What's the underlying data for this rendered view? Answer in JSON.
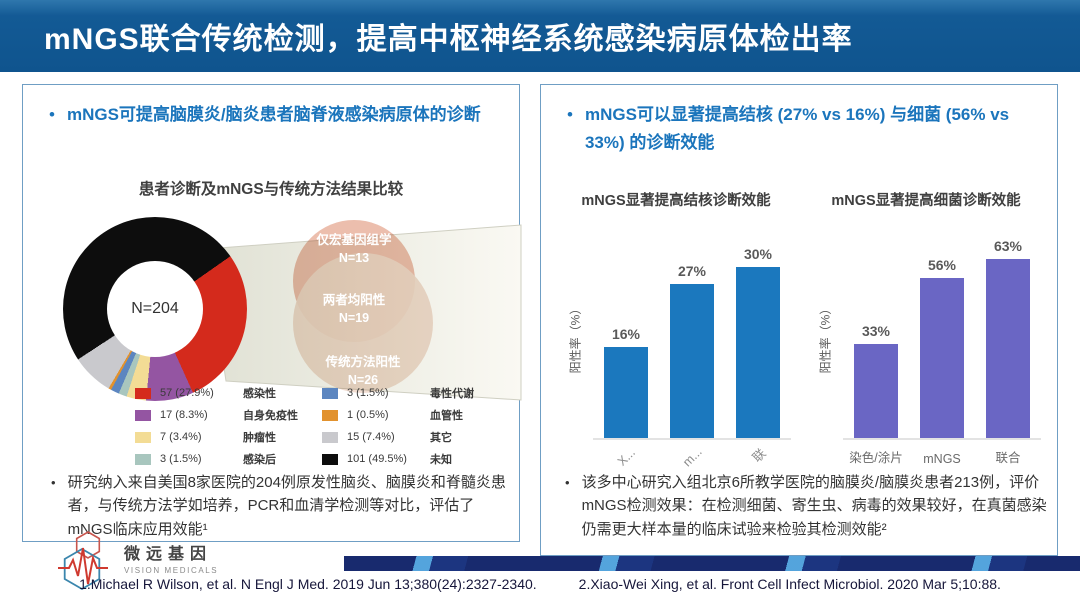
{
  "header": {
    "title": "mNGS联合传统检测，提高中枢神经系统感染病原体检出率"
  },
  "left_panel": {
    "bullet": "mNGS可提高脑膜炎/脑炎患者脑脊液感染病原体的诊断",
    "note": "研究纳入来自美国8家医院的204例原发性脑炎、脑膜炎和脊髓炎患者，与传统方法学如培养，PCR和血清学检测等对比，评估了mNGS临床应用效能¹"
  },
  "right_panel": {
    "bullet": "mNGS可以显著提高结核 (27% vs 16%) 与细菌 (56% vs 33%) 的诊断效能",
    "note": "该多中心研究入组北京6所教学医院的脑膜炎/脑膜炎患者213例，评价mNGS检测效果：在检测细菌、寄生虫、病毒的效果较好，在真菌感染仍需更大样本量的临床试验来检验其检测效能²"
  },
  "footer": {
    "logo_cn": "微远基因",
    "logo_en": "VISION MEDICALS",
    "reference1": "1.Michael R Wilson, et al. N Engl J Med. 2019 Jun 13;380(24):2327-2340.",
    "reference2": "2.Xiao-Wei Xing, et al. Front Cell Infect  Microbiol. 2020 Mar 5;10:88."
  },
  "chart_data": [
    {
      "type": "pie",
      "title": "患者诊断及mNGS与传统方法结果比较",
      "center_label": "N=204",
      "labels": [
        "感染性",
        "自身免疫性",
        "肿瘤性",
        "感染后",
        "毒性代谢",
        "血管性",
        "其它",
        "未知"
      ],
      "values": [
        57,
        17,
        7,
        3,
        3,
        1,
        15,
        101
      ],
      "percents": [
        "27.9%",
        "8.3%",
        "3.4%",
        "1.5%",
        "1.5%",
        "0.5%",
        "7.4%",
        "49.5%"
      ],
      "colors": [
        "#d42a1c",
        "#9455a2",
        "#f3dc95",
        "#a8c6be",
        "#5c86c0",
        "#e2922e",
        "#c9c9cd",
        "#0d0d0d"
      ],
      "start_angle": 55,
      "total": 204,
      "venn": [
        {
          "label": "仅宏基因组学",
          "n": "N=13"
        },
        {
          "label": "两者均阳性",
          "n": "N=19"
        },
        {
          "label": "传统方法阳性",
          "n": "N=26"
        }
      ]
    },
    {
      "type": "bar",
      "title": "mNGS显著提高结核诊断效能",
      "categories": [
        "X...",
        "m...",
        "联"
      ],
      "values": [
        16,
        27,
        30
      ],
      "data_labels": [
        "16%",
        "27%",
        "30%"
      ],
      "ylabel": "阳性率（%）",
      "ylim": [
        0,
        35
      ],
      "bar_color": "#1b78be",
      "x_rotated": true,
      "grid": false,
      "legend": "none"
    },
    {
      "type": "bar",
      "title": "mNGS显著提高细菌诊断效能",
      "categories": [
        "染色/涂片",
        "mNGS",
        "联合"
      ],
      "values": [
        33,
        56,
        63
      ],
      "data_labels": [
        "33%",
        "56%",
        "63%"
      ],
      "ylabel": "阳性率（%）",
      "ylim": [
        0,
        70
      ],
      "bar_color": "#6a66c4",
      "x_rotated": false,
      "grid": false,
      "legend": "none"
    }
  ]
}
